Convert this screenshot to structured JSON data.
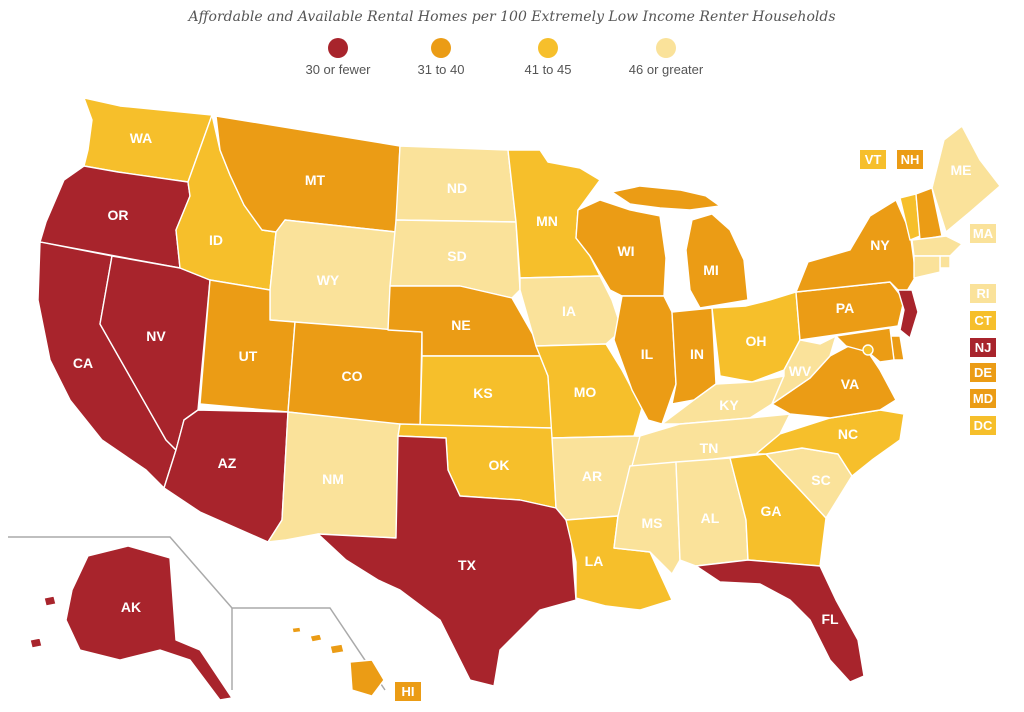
{
  "title": "Affordable and Available Rental Homes per 100 Extremely Low Income Renter Households",
  "colors": {
    "c1": "#a8242c",
    "c2": "#eb9c15",
    "c3": "#f6bf2b",
    "c4": "#fae29a"
  },
  "legend": [
    {
      "label": "30 or fewer",
      "color": "#a8242c"
    },
    {
      "label": "31 to 40",
      "color": "#eb9c15"
    },
    {
      "label": "41 to 45",
      "color": "#f6bf2b"
    },
    {
      "label": "46 or greater",
      "color": "#fae29a"
    }
  ],
  "states": {
    "WA": "WA",
    "OR": "OR",
    "CA": "CA",
    "NV": "NV",
    "ID": "ID",
    "MT": "MT",
    "WY": "WY",
    "UT": "UT",
    "AZ": "AZ",
    "CO": "CO",
    "NM": "NM",
    "ND": "ND",
    "SD": "SD",
    "NE": "NE",
    "KS": "KS",
    "OK": "OK",
    "TX": "TX",
    "MN": "MN",
    "IA": "IA",
    "MO": "MO",
    "AR": "AR",
    "LA": "LA",
    "WI": "WI",
    "IL": "IL",
    "MI": "MI",
    "IN": "IN",
    "OH": "OH",
    "KY": "KY",
    "TN": "TN",
    "MS": "MS",
    "AL": "AL",
    "GA": "GA",
    "FL": "FL",
    "SC": "SC",
    "NC": "NC",
    "VA": "VA",
    "WV": "WV",
    "PA": "PA",
    "NY": "NY",
    "ME": "ME",
    "AK": "AK",
    "HI": "HI"
  },
  "small_states": {
    "VT": "VT",
    "NH": "NH",
    "MA": "MA",
    "RI": "RI",
    "CT": "CT",
    "NJ": "NJ",
    "DE": "DE",
    "MD": "MD",
    "DC": "DC"
  }
}
